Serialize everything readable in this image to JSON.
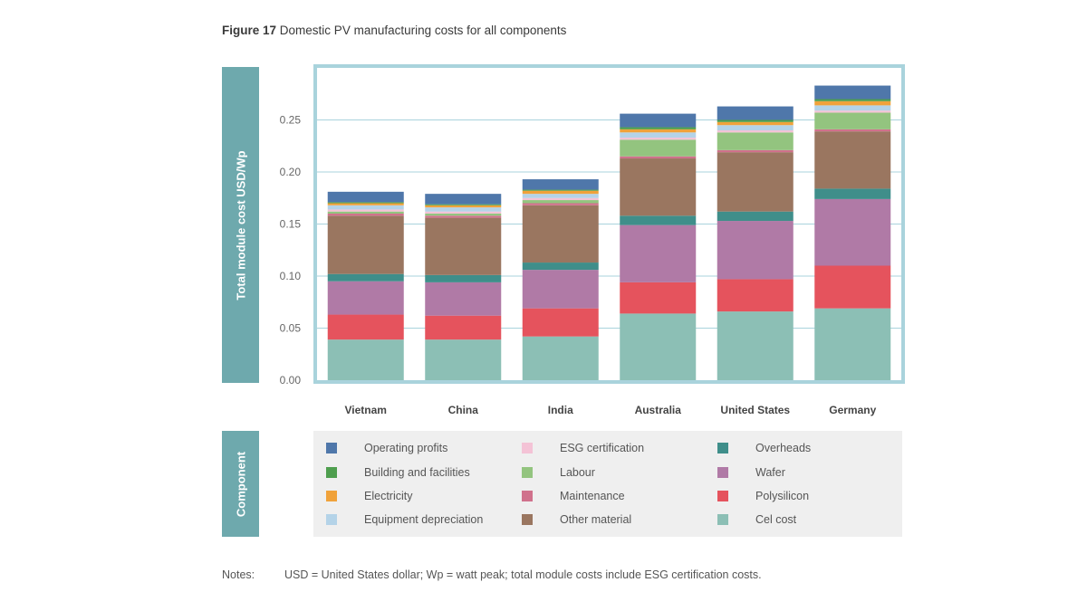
{
  "title": {
    "prefix": "Figure 17",
    "text": "Domestic PV manufacturing costs for all components"
  },
  "chart_data": {
    "type": "bar",
    "stacked": true,
    "categories": [
      "Vietnam",
      "China",
      "India",
      "Australia",
      "United States",
      "Germany"
    ],
    "ylabel": "Total module cost USD/Wp",
    "ylim": [
      0,
      0.3
    ],
    "yticks": [
      0.0,
      0.05,
      0.1,
      0.15,
      0.2,
      0.25
    ],
    "ytick_labels": [
      "0.00",
      "0.05",
      "0.10",
      "0.15",
      "0.20",
      "0.25"
    ],
    "grid": true,
    "series": [
      {
        "name": "Cel cost",
        "color": "#8cbfb5",
        "values": [
          0.039,
          0.039,
          0.042,
          0.064,
          0.066,
          0.069
        ]
      },
      {
        "name": "Polysilicon",
        "color": "#e5535d",
        "values": [
          0.024,
          0.023,
          0.027,
          0.03,
          0.031,
          0.041
        ]
      },
      {
        "name": "Wafer",
        "color": "#b07aa6",
        "values": [
          0.032,
          0.032,
          0.037,
          0.055,
          0.056,
          0.064
        ]
      },
      {
        "name": "Overheads",
        "color": "#3f8e8a",
        "values": [
          0.007,
          0.007,
          0.007,
          0.009,
          0.009,
          0.01
        ]
      },
      {
        "name": "Other material",
        "color": "#9a7660",
        "values": [
          0.056,
          0.055,
          0.055,
          0.055,
          0.057,
          0.055
        ]
      },
      {
        "name": "Maintenance",
        "color": "#d0718c",
        "values": [
          0.002,
          0.002,
          0.002,
          0.002,
          0.002,
          0.002
        ]
      },
      {
        "name": "Labour",
        "color": "#93c47f",
        "values": [
          0.002,
          0.002,
          0.003,
          0.016,
          0.017,
          0.016
        ]
      },
      {
        "name": "ESG certification",
        "color": "#f4c3d6",
        "values": [
          0.002,
          0.002,
          0.002,
          0.002,
          0.002,
          0.002
        ]
      },
      {
        "name": "Equipment depreciation",
        "color": "#b4d3e8",
        "values": [
          0.004,
          0.004,
          0.004,
          0.005,
          0.005,
          0.005
        ]
      },
      {
        "name": "Electricity",
        "color": "#f0a23a",
        "values": [
          0.002,
          0.002,
          0.003,
          0.003,
          0.003,
          0.004
        ]
      },
      {
        "name": "Building and facilities",
        "color": "#4e9e4e",
        "values": [
          0.001,
          0.001,
          0.001,
          0.002,
          0.002,
          0.002
        ]
      },
      {
        "name": "Operating profits",
        "color": "#4f77aa",
        "values": [
          0.01,
          0.01,
          0.01,
          0.013,
          0.013,
          0.013
        ]
      }
    ]
  },
  "legend": {
    "title": "Component",
    "columns": [
      [
        {
          "name": "Operating profits",
          "color": "#4f77aa"
        },
        {
          "name": "Building and facilities",
          "color": "#4e9e4e"
        },
        {
          "name": "Electricity",
          "color": "#f0a23a"
        },
        {
          "name": "Equipment depreciation",
          "color": "#b4d3e8"
        }
      ],
      [
        {
          "name": "ESG certification",
          "color": "#f4c3d6"
        },
        {
          "name": "Labour",
          "color": "#93c47f"
        },
        {
          "name": "Maintenance",
          "color": "#d0718c"
        },
        {
          "name": "Other material",
          "color": "#9a7660"
        }
      ],
      [
        {
          "name": "Overheads",
          "color": "#3f8e8a"
        },
        {
          "name": "Wafer",
          "color": "#b07aa6"
        },
        {
          "name": "Polysilicon",
          "color": "#e5535d"
        },
        {
          "name": "Cel cost",
          "color": "#8cbfb5"
        }
      ]
    ]
  },
  "notes": {
    "label": "Notes:",
    "text": "USD = United States dollar; Wp = watt peak; total module costs include ESG certification costs."
  }
}
